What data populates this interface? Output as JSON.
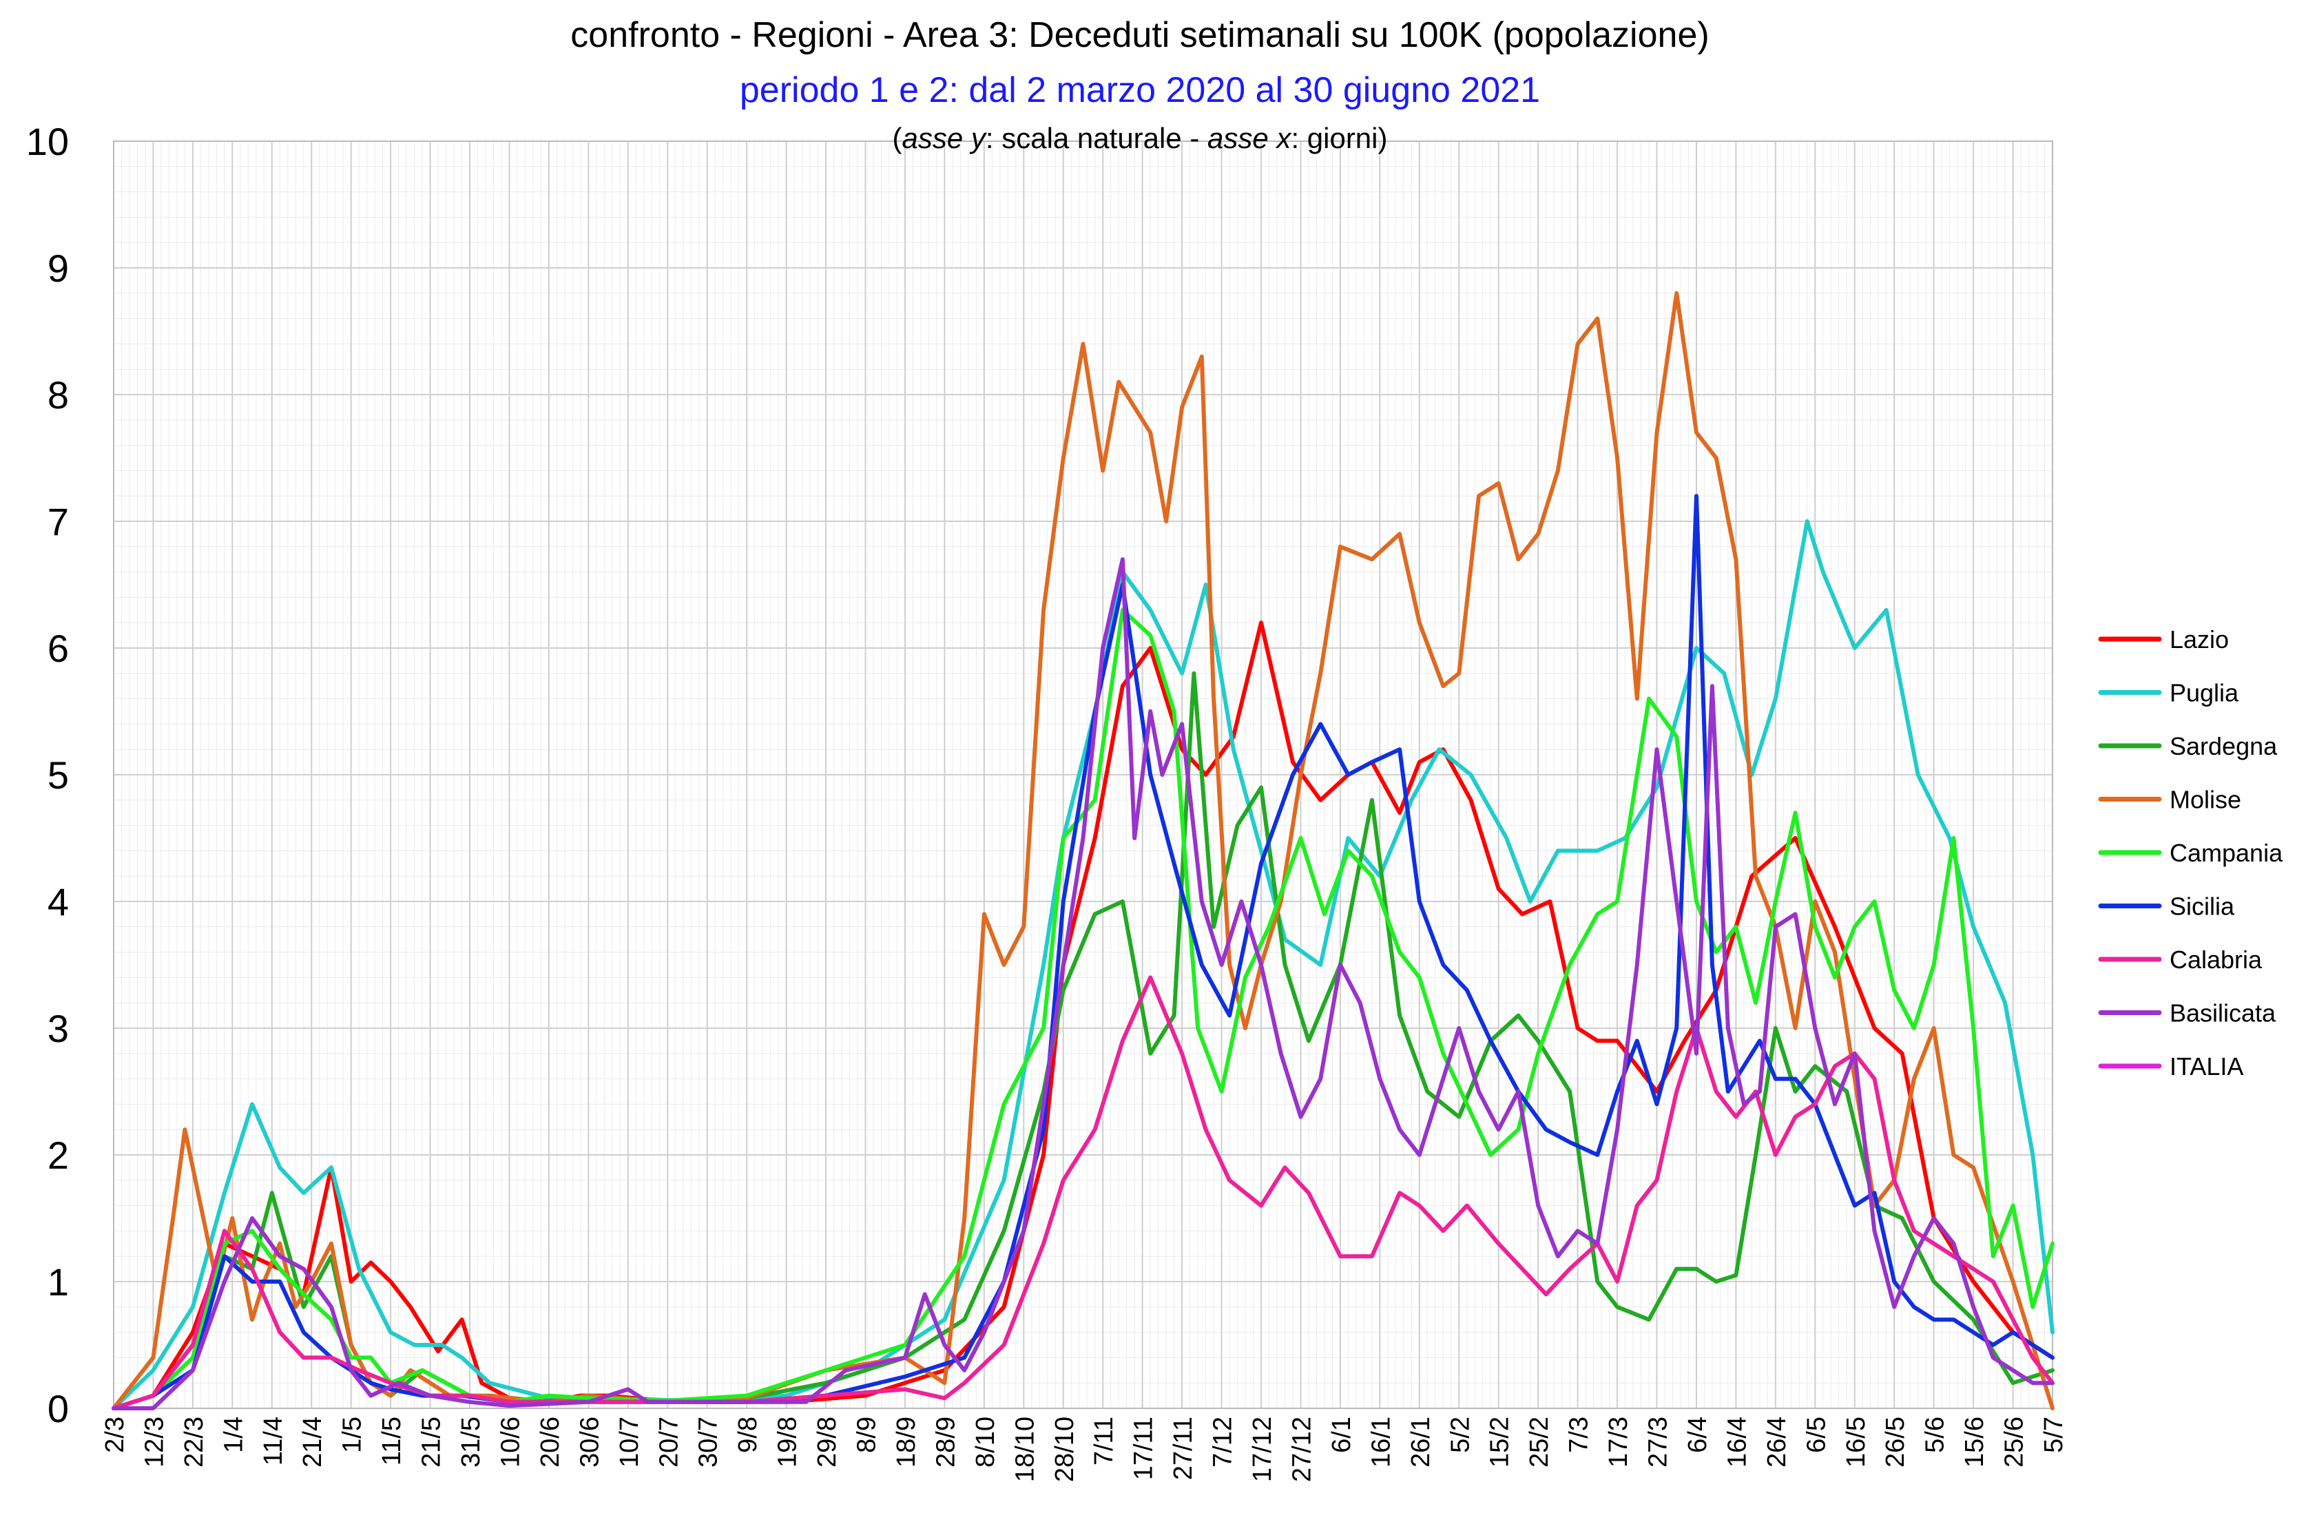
{
  "chart_data": {
    "type": "line",
    "title": "confronto - Regioni - Area 3: Deceduti setimanali su 100K (popolazione)",
    "subtitle": "periodo 1 e 2: dal 2 marzo 2020 al 30 giugno 2021",
    "axis_note": {
      "open": "(",
      "y_label": "asse y",
      "y_desc": ": scala naturale - ",
      "x_label": "asse x",
      "x_desc": ":  giorni)"
    },
    "ylim": [
      0,
      10
    ],
    "y_ticks": [
      "0",
      "1",
      "2",
      "3",
      "4",
      "5",
      "6",
      "7",
      "8",
      "9",
      "10"
    ],
    "x_ticks": [
      "2/3",
      "12/3",
      "22/3",
      "1/4",
      "11/4",
      "21/4",
      "1/5",
      "11/5",
      "21/5",
      "31/5",
      "10/6",
      "20/6",
      "30/6",
      "10/7",
      "20/7",
      "30/7",
      "9/8",
      "19/8",
      "29/8",
      "8/9",
      "18/9",
      "28/9",
      "8/10",
      "18/10",
      "28/10",
      "7/11",
      "17/11",
      "27/11",
      "7/12",
      "17/12",
      "27/12",
      "6/1",
      "16/1",
      "26/1",
      "5/2",
      "15/2",
      "25/2",
      "7/3",
      "17/3",
      "27/3",
      "6/4",
      "16/4",
      "26/4",
      "6/5",
      "16/5",
      "26/5",
      "5/6",
      "15/6",
      "25/6",
      "5/7"
    ],
    "x_range_days": [
      0,
      490
    ],
    "grid": true,
    "legend_position": "right",
    "series": [
      {
        "name": "Lazio",
        "color": "#ff0000",
        "x": [
          0,
          10,
          20,
          28,
          35,
          42,
          48,
          55,
          60,
          65,
          70,
          75,
          82,
          88,
          93,
          100,
          110,
          118,
          125,
          135,
          150,
          170,
          190,
          210,
          225,
          235,
          240,
          248,
          255,
          262,
          270,
          276,
          283,
          290,
          298,
          305,
          312,
          318,
          325,
          330,
          336,
          343,
          350,
          356,
          363,
          370,
          375,
          380,
          390,
          397,
          405,
          414,
          425,
          435,
          445,
          452,
          460,
          470,
          480,
          490
        ],
        "values": [
          0,
          0.1,
          0.6,
          1.3,
          1.2,
          1.1,
          0.9,
          1.9,
          1.0,
          1.15,
          1.0,
          0.8,
          0.45,
          0.7,
          0.2,
          0.08,
          0.05,
          0.1,
          0.1,
          0.07,
          0.05,
          0.05,
          0.1,
          0.3,
          0.8,
          2.0,
          3.5,
          4.5,
          5.7,
          6.0,
          5.2,
          5.0,
          5.3,
          6.2,
          5.1,
          4.8,
          5.0,
          5.1,
          4.7,
          5.1,
          5.2,
          4.8,
          4.1,
          3.9,
          4.0,
          3.0,
          2.9,
          2.9,
          2.5,
          2.9,
          3.3,
          4.2,
          4.5,
          3.8,
          3.0,
          2.8,
          1.5,
          1.0,
          0.6,
          0.4
        ]
      },
      {
        "name": "Puglia",
        "color": "#22cccc",
        "x": [
          0,
          10,
          20,
          28,
          35,
          42,
          48,
          55,
          62,
          70,
          76,
          83,
          88,
          95,
          110,
          130,
          150,
          170,
          190,
          210,
          225,
          235,
          240,
          248,
          255,
          262,
          270,
          276,
          283,
          290,
          296,
          305,
          312,
          320,
          328,
          335,
          343,
          352,
          358,
          365,
          375,
          382,
          390,
          400,
          407,
          414,
          420,
          428,
          432,
          440,
          448,
          456,
          464,
          470,
          478,
          485,
          490
        ],
        "values": [
          0,
          0.3,
          0.8,
          1.7,
          2.4,
          1.9,
          1.7,
          1.9,
          1.1,
          0.6,
          0.5,
          0.5,
          0.4,
          0.2,
          0.08,
          0.07,
          0.06,
          0.1,
          0.3,
          0.7,
          1.8,
          3.5,
          4.5,
          5.5,
          6.6,
          6.3,
          5.8,
          6.5,
          5.2,
          4.4,
          3.7,
          3.5,
          4.5,
          4.2,
          4.8,
          5.2,
          5.0,
          4.5,
          4.0,
          4.4,
          4.4,
          4.5,
          4.9,
          6.0,
          5.8,
          5.0,
          5.6,
          7.0,
          6.6,
          6.0,
          6.3,
          5.0,
          4.5,
          3.8,
          3.2,
          2.0,
          0.6
        ]
      },
      {
        "name": "Sardegna",
        "color": "#22aa22",
        "x": [
          0,
          10,
          20,
          28,
          35,
          40,
          48,
          55,
          60,
          65,
          70,
          78,
          90,
          100,
          120,
          140,
          160,
          180,
          200,
          215,
          225,
          235,
          240,
          248,
          255,
          262,
          268,
          273,
          278,
          284,
          290,
          296,
          302,
          310,
          318,
          325,
          332,
          340,
          348,
          355,
          360,
          368,
          375,
          380,
          388,
          395,
          400,
          405,
          410,
          415,
          420,
          425,
          430,
          438,
          445,
          452,
          460,
          470,
          480,
          490
        ],
        "values": [
          0,
          0.1,
          0.5,
          1.2,
          1.1,
          1.7,
          0.8,
          1.2,
          0.5,
          0.2,
          0.1,
          0.3,
          0.1,
          0.05,
          0.07,
          0.05,
          0.08,
          0.2,
          0.4,
          0.7,
          1.4,
          2.5,
          3.3,
          3.9,
          4.0,
          2.8,
          3.1,
          5.8,
          3.8,
          4.6,
          4.9,
          3.5,
          2.9,
          3.5,
          4.8,
          3.1,
          2.5,
          2.3,
          2.9,
          3.1,
          2.9,
          2.5,
          1.0,
          0.8,
          0.7,
          1.1,
          1.1,
          1.0,
          1.05,
          2.0,
          3.0,
          2.5,
          2.7,
          2.5,
          1.6,
          1.5,
          1.0,
          0.7,
          0.2,
          0.3
        ]
      },
      {
        "name": "Molise",
        "color": "#e06a20",
        "x": [
          0,
          10,
          15,
          18,
          22,
          26,
          30,
          35,
          38,
          42,
          46,
          50,
          55,
          60,
          65,
          70,
          75,
          85,
          95,
          110,
          120,
          140,
          160,
          180,
          200,
          210,
          215,
          220,
          225,
          230,
          235,
          240,
          245,
          250,
          254,
          258,
          262,
          266,
          270,
          275,
          278,
          282,
          286,
          290,
          295,
          300,
          305,
          310,
          318,
          325,
          330,
          336,
          340,
          345,
          350,
          355,
          360,
          365,
          370,
          375,
          380,
          385,
          390,
          395,
          400,
          405,
          410,
          415,
          420,
          425,
          430,
          435,
          440,
          445,
          450,
          455,
          460,
          465,
          470,
          480,
          490
        ],
        "values": [
          0,
          0.4,
          1.5,
          2.2,
          1.6,
          1.0,
          1.5,
          0.7,
          1.0,
          1.3,
          0.8,
          1.0,
          1.3,
          0.5,
          0.2,
          0.1,
          0.3,
          0.1,
          0.1,
          0.05,
          0.1,
          0.05,
          0.08,
          0.3,
          0.4,
          0.2,
          1.5,
          3.9,
          3.5,
          3.8,
          6.3,
          7.5,
          8.4,
          7.4,
          8.1,
          7.9,
          7.7,
          7.0,
          7.9,
          8.3,
          5.6,
          3.5,
          3.0,
          3.5,
          4.0,
          5.0,
          5.8,
          6.8,
          6.7,
          6.9,
          6.2,
          5.7,
          5.8,
          7.2,
          7.3,
          6.7,
          6.9,
          7.4,
          8.4,
          8.6,
          7.5,
          5.6,
          7.7,
          8.8,
          7.7,
          7.5,
          6.7,
          4.2,
          3.8,
          3.0,
          4.0,
          3.6,
          2.6,
          1.6,
          1.8,
          2.6,
          3.0,
          2.0,
          1.9,
          1.0,
          0
        ]
      },
      {
        "name": "Campania",
        "color": "#22ee22",
        "x": [
          0,
          10,
          20,
          28,
          35,
          42,
          48,
          55,
          60,
          65,
          70,
          78,
          90,
          100,
          110,
          120,
          140,
          160,
          180,
          200,
          215,
          225,
          235,
          240,
          248,
          255,
          262,
          268,
          274,
          280,
          286,
          292,
          300,
          306,
          312,
          318,
          325,
          330,
          336,
          342,
          348,
          355,
          360,
          368,
          375,
          380,
          388,
          395,
          400,
          405,
          410,
          415,
          420,
          425,
          430,
          435,
          440,
          445,
          450,
          455,
          460,
          465,
          470,
          475,
          480,
          485,
          490
        ],
        "values": [
          0,
          0.1,
          0.4,
          1.3,
          1.4,
          1.1,
          0.9,
          0.7,
          0.4,
          0.4,
          0.2,
          0.3,
          0.1,
          0.05,
          0.1,
          0.08,
          0.06,
          0.1,
          0.3,
          0.5,
          1.2,
          2.4,
          3.0,
          4.5,
          4.8,
          6.3,
          6.1,
          5.5,
          3.0,
          2.5,
          3.4,
          3.8,
          4.5,
          3.9,
          4.4,
          4.2,
          3.6,
          3.4,
          2.8,
          2.4,
          2.0,
          2.2,
          2.8,
          3.5,
          3.9,
          4.0,
          5.6,
          5.3,
          4.0,
          3.6,
          3.8,
          3.2,
          4.0,
          4.7,
          3.8,
          3.4,
          3.8,
          4.0,
          3.3,
          3.0,
          3.5,
          4.5,
          3.0,
          1.2,
          1.6,
          0.8,
          1.3
        ]
      },
      {
        "name": "Sicilia",
        "color": "#1030e0",
        "x": [
          0,
          10,
          20,
          28,
          35,
          42,
          48,
          55,
          60,
          65,
          70,
          78,
          88,
          100,
          120,
          140,
          160,
          180,
          200,
          215,
          225,
          235,
          240,
          248,
          255,
          262,
          268,
          275,
          282,
          290,
          298,
          305,
          312,
          318,
          325,
          330,
          336,
          342,
          348,
          355,
          362,
          368,
          375,
          380,
          385,
          390,
          395,
          400,
          404,
          408,
          412,
          416,
          420,
          425,
          430,
          435,
          440,
          445,
          450,
          455,
          460,
          465,
          470,
          475,
          480,
          485,
          490
        ],
        "values": [
          0,
          0.1,
          0.3,
          1.2,
          1.0,
          1.0,
          0.6,
          0.4,
          0.3,
          0.2,
          0.15,
          0.1,
          0.1,
          0.05,
          0.05,
          0.05,
          0.05,
          0.1,
          0.25,
          0.4,
          1.0,
          2.2,
          4.0,
          5.5,
          6.5,
          5.0,
          4.3,
          3.5,
          3.1,
          4.3,
          5.0,
          5.4,
          5.0,
          5.1,
          5.2,
          4.0,
          3.5,
          3.3,
          2.9,
          2.5,
          2.2,
          2.1,
          2.0,
          2.5,
          2.9,
          2.4,
          3.0,
          7.2,
          3.5,
          2.5,
          2.7,
          2.9,
          2.6,
          2.6,
          2.4,
          2.0,
          1.6,
          1.7,
          1.0,
          0.8,
          0.7,
          0.7,
          0.6,
          0.5,
          0.6,
          0.5,
          0.4
        ]
      },
      {
        "name": "Calabria",
        "color": "#ee2299",
        "x": [
          0,
          10,
          20,
          28,
          35,
          42,
          48,
          55,
          62,
          70,
          80,
          90,
          100,
          120,
          140,
          160,
          180,
          200,
          210,
          215,
          225,
          235,
          240,
          248,
          255,
          262,
          270,
          276,
          282,
          290,
          296,
          302,
          310,
          318,
          325,
          330,
          336,
          342,
          350,
          356,
          362,
          368,
          375,
          380,
          385,
          390,
          395,
          400,
          405,
          410,
          415,
          420,
          425,
          430,
          435,
          440,
          445,
          450,
          455,
          460,
          465,
          470,
          475,
          480,
          485,
          490
        ],
        "values": [
          0,
          0.1,
          0.5,
          1.4,
          1.1,
          0.6,
          0.4,
          0.4,
          0.3,
          0.2,
          0.1,
          0.1,
          0.05,
          0.05,
          0.05,
          0.05,
          0.1,
          0.15,
          0.08,
          0.2,
          0.5,
          1.3,
          1.8,
          2.2,
          2.9,
          3.4,
          2.8,
          2.2,
          1.8,
          1.6,
          1.9,
          1.7,
          1.2,
          1.2,
          1.7,
          1.6,
          1.4,
          1.6,
          1.3,
          1.1,
          0.9,
          1.1,
          1.3,
          1.0,
          1.6,
          1.8,
          2.5,
          3.0,
          2.5,
          2.3,
          2.5,
          2.0,
          2.3,
          2.4,
          2.7,
          2.8,
          2.6,
          1.8,
          1.4,
          1.3,
          1.2,
          1.1,
          1.0,
          0.7,
          0.4,
          0.2
        ]
      },
      {
        "name": "Basilicata",
        "color": "#9933cc",
        "x": [
          0,
          10,
          20,
          28,
          35,
          42,
          48,
          55,
          60,
          65,
          72,
          80,
          90,
          100,
          120,
          130,
          135,
          145,
          160,
          175,
          185,
          200,
          205,
          210,
          215,
          220,
          225,
          230,
          235,
          240,
          245,
          250,
          255,
          258,
          262,
          265,
          270,
          275,
          280,
          285,
          290,
          295,
          300,
          305,
          310,
          315,
          320,
          325,
          330,
          335,
          340,
          345,
          350,
          355,
          360,
          365,
          370,
          375,
          380,
          385,
          390,
          395,
          400,
          404,
          408,
          412,
          416,
          420,
          425,
          430,
          435,
          440,
          445,
          450,
          455,
          460,
          465,
          470,
          475,
          480,
          485,
          490
        ],
        "values": [
          0,
          0,
          0.3,
          1.0,
          1.5,
          1.2,
          1.1,
          0.8,
          0.3,
          0.1,
          0.2,
          0.1,
          0.05,
          0.02,
          0.05,
          0.15,
          0.05,
          0.05,
          0.05,
          0.05,
          0.3,
          0.4,
          0.9,
          0.5,
          0.3,
          0.6,
          1.0,
          1.4,
          2.4,
          3.5,
          4.5,
          6.0,
          6.7,
          4.5,
          5.5,
          5.0,
          5.4,
          4.0,
          3.5,
          4.0,
          3.5,
          2.8,
          2.3,
          2.6,
          3.5,
          3.2,
          2.6,
          2.2,
          2.0,
          2.5,
          3.0,
          2.5,
          2.2,
          2.5,
          1.6,
          1.2,
          1.4,
          1.3,
          2.2,
          3.5,
          5.2,
          4.0,
          2.8,
          5.7,
          3.0,
          2.4,
          2.5,
          3.8,
          3.9,
          3.0,
          2.4,
          2.8,
          1.4,
          0.8,
          1.2,
          1.5,
          1.3,
          0.8,
          0.4,
          0.3,
          0.2,
          0.2
        ]
      },
      {
        "name": "ITALIA",
        "color": "#dd22dd",
        "x": [],
        "values": []
      }
    ]
  }
}
